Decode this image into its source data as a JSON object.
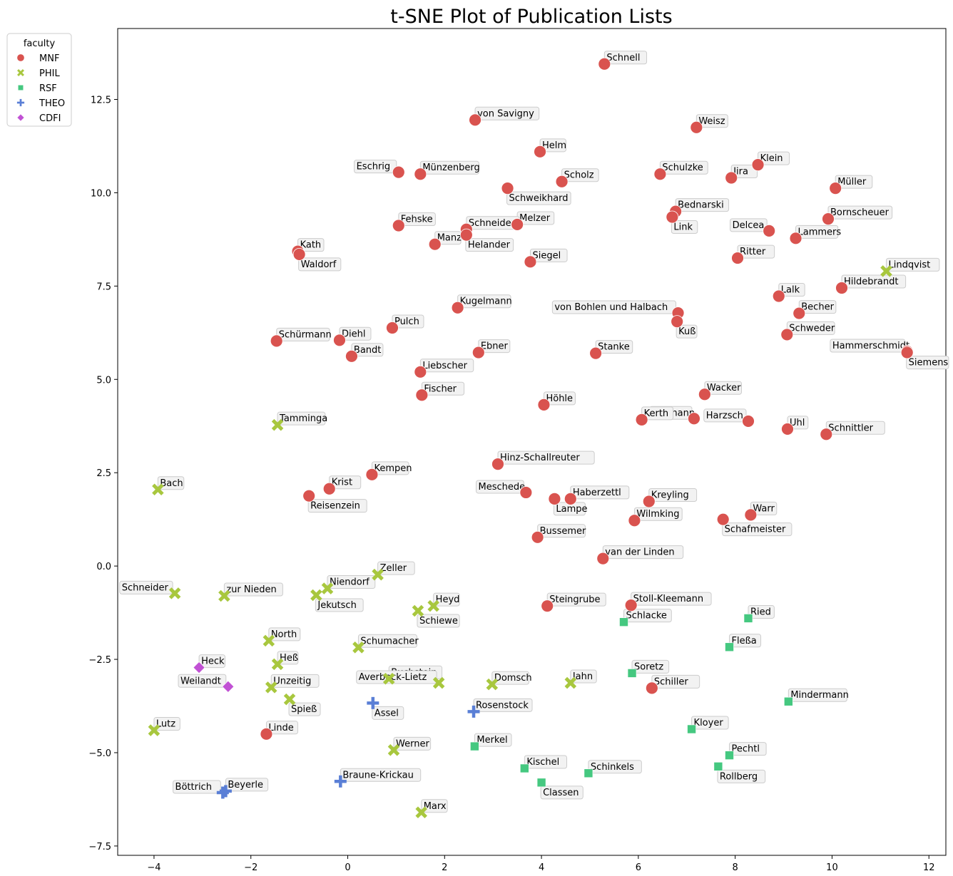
{
  "chart_data": {
    "type": "scatter",
    "title": "t-SNE Plot of Publication Lists",
    "xlabel": "",
    "ylabel": "",
    "xlim": [
      -4.75,
      12.35
    ],
    "ylim": [
      -7.75,
      14.4
    ],
    "x_ticks": [
      -4,
      -2,
      0,
      2,
      4,
      6,
      8,
      10,
      12
    ],
    "y_ticks": [
      -7.5,
      -5.0,
      -2.5,
      0.0,
      2.5,
      5.0,
      7.5,
      10.0,
      12.5
    ],
    "grid": false,
    "legend": {
      "title": "faculty",
      "placement": "outside-top-left",
      "entries": [
        {
          "name": "MNF",
          "color": "#d9534f",
          "marker": "circle"
        },
        {
          "name": "PHIL",
          "color": "#a8c73e",
          "marker": "x"
        },
        {
          "name": "RSF",
          "color": "#45c880",
          "marker": "square"
        },
        {
          "name": "THEO",
          "color": "#5a7fd6",
          "marker": "plus"
        },
        {
          "name": "CDFI",
          "color": "#c151d4",
          "marker": "diamond"
        }
      ]
    },
    "series": [
      {
        "name": "MNF",
        "points": [
          {
            "label": "Schnell",
            "x": 5.3,
            "y": 13.45
          },
          {
            "label": "von Savigny",
            "x": 2.63,
            "y": 11.95
          },
          {
            "label": "Weisz",
            "x": 7.2,
            "y": 11.75
          },
          {
            "label": "Helm",
            "x": 3.97,
            "y": 11.1
          },
          {
            "label": "Klein",
            "x": 8.47,
            "y": 10.75
          },
          {
            "label": "Eschrig",
            "x": 1.05,
            "y": 10.55
          },
          {
            "label": "Münzenberg",
            "x": 1.5,
            "y": 10.5
          },
          {
            "label": "Schulzke",
            "x": 6.45,
            "y": 10.5
          },
          {
            "label": "Jira",
            "x": 7.92,
            "y": 10.4
          },
          {
            "label": "Scholz",
            "x": 4.42,
            "y": 10.3
          },
          {
            "label": "Schweikhard",
            "x": 3.3,
            "y": 10.12
          },
          {
            "label": "Müller",
            "x": 10.07,
            "y": 10.12
          },
          {
            "label": "Bednarski",
            "x": 6.77,
            "y": 9.5
          },
          {
            "label": "Link",
            "x": 6.7,
            "y": 9.35
          },
          {
            "label": "Bornscheuer",
            "x": 9.92,
            "y": 9.3
          },
          {
            "label": "Fehske",
            "x": 1.05,
            "y": 9.12
          },
          {
            "label": "Melzer",
            "x": 3.5,
            "y": 9.15
          },
          {
            "label": "Schneider",
            "x": 2.45,
            "y": 9.02
          },
          {
            "label": "Helander",
            "x": 2.45,
            "y": 8.87
          },
          {
            "label": "Delcea",
            "x": 8.7,
            "y": 8.98
          },
          {
            "label": "Lammers",
            "x": 9.25,
            "y": 8.78
          },
          {
            "label": "Manz",
            "x": 1.8,
            "y": 8.62
          },
          {
            "label": "Kath",
            "x": -1.03,
            "y": 8.43
          },
          {
            "label": "Waldorf",
            "x": -1.0,
            "y": 8.35
          },
          {
            "label": "Ritter",
            "x": 8.05,
            "y": 8.25
          },
          {
            "label": "Siegel",
            "x": 3.77,
            "y": 8.15
          },
          {
            "label": "Hildebrandt",
            "x": 10.2,
            "y": 7.45
          },
          {
            "label": "Lalk",
            "x": 8.9,
            "y": 7.23
          },
          {
            "label": "Kugelmann",
            "x": 2.27,
            "y": 6.92
          },
          {
            "label": "von Bohlen und Halbach",
            "x": 6.82,
            "y": 6.78
          },
          {
            "label": "Becher",
            "x": 9.32,
            "y": 6.77
          },
          {
            "label": "Kuß",
            "x": 6.8,
            "y": 6.55
          },
          {
            "label": "Pulch",
            "x": 0.92,
            "y": 6.38
          },
          {
            "label": "Schweder",
            "x": 9.07,
            "y": 6.2
          },
          {
            "label": "Schürmann",
            "x": -1.47,
            "y": 6.03
          },
          {
            "label": "Diehl",
            "x": -0.17,
            "y": 6.05
          },
          {
            "label": "Hammerschmidt",
            "x": 11.55,
            "y": 5.75
          },
          {
            "label": "Siemens",
            "x": 11.55,
            "y": 5.72
          },
          {
            "label": "Ebner",
            "x": 2.7,
            "y": 5.72
          },
          {
            "label": "Stanke",
            "x": 5.12,
            "y": 5.7
          },
          {
            "label": "Bandt",
            "x": 0.08,
            "y": 5.62
          },
          {
            "label": "Liebscher",
            "x": 1.5,
            "y": 5.2
          },
          {
            "label": "Wacker",
            "x": 7.37,
            "y": 4.6
          },
          {
            "label": "Fischer",
            "x": 1.53,
            "y": 4.58
          },
          {
            "label": "Höhle",
            "x": 4.05,
            "y": 4.32
          },
          {
            "label": "Lehmann",
            "x": 7.15,
            "y": 3.95
          },
          {
            "label": "Kerth",
            "x": 6.07,
            "y": 3.92
          },
          {
            "label": "Harzsch",
            "x": 8.27,
            "y": 3.88
          },
          {
            "label": "Uhl",
            "x": 9.08,
            "y": 3.67
          },
          {
            "label": "Schnittler",
            "x": 9.88,
            "y": 3.53
          },
          {
            "label": "Hinz-Schallreuter",
            "x": 3.1,
            "y": 2.73
          },
          {
            "label": "Kempen",
            "x": 0.5,
            "y": 2.45
          },
          {
            "label": "Krist",
            "x": -0.38,
            "y": 2.07
          },
          {
            "label": "Meschede",
            "x": 3.68,
            "y": 1.97
          },
          {
            "label": "Reisenzein",
            "x": -0.8,
            "y": 1.88
          },
          {
            "label": "Lampe",
            "x": 4.27,
            "y": 1.8
          },
          {
            "label": "Haberzettl",
            "x": 4.6,
            "y": 1.8
          },
          {
            "label": "Kreyling",
            "x": 6.22,
            "y": 1.73
          },
          {
            "label": "Warr",
            "x": 8.32,
            "y": 1.37
          },
          {
            "label": "Wilmking",
            "x": 5.92,
            "y": 1.22
          },
          {
            "label": "Schafmeister",
            "x": 7.75,
            "y": 1.25
          },
          {
            "label": "Bussemer",
            "x": 3.92,
            "y": 0.77
          },
          {
            "label": "van der Linden",
            "x": 5.27,
            "y": 0.2
          },
          {
            "label": "Steingrube",
            "x": 4.12,
            "y": -1.07
          },
          {
            "label": "Stoll-Kleemann",
            "x": 5.85,
            "y": -1.05
          },
          {
            "label": "Schiller",
            "x": 6.28,
            "y": -3.27
          },
          {
            "label": "Linde",
            "x": -1.68,
            "y": -4.5
          }
        ]
      },
      {
        "name": "PHIL",
        "points": [
          {
            "label": "Lindqvist",
            "x": 11.12,
            "y": 7.9
          },
          {
            "label": "Tamminga",
            "x": -1.45,
            "y": 3.78
          },
          {
            "label": "Bach",
            "x": -3.92,
            "y": 2.05
          },
          {
            "label": "Zeller",
            "x": 0.62,
            "y": -0.23
          },
          {
            "label": "Niendorf",
            "x": -0.42,
            "y": -0.6
          },
          {
            "label": "Schneider",
            "x": -3.57,
            "y": -0.73
          },
          {
            "label": "zur Nieden",
            "x": -2.55,
            "y": -0.8
          },
          {
            "label": "Jekutsch",
            "x": -0.65,
            "y": -0.78
          },
          {
            "label": "Heyd",
            "x": 1.77,
            "y": -1.07
          },
          {
            "label": "Schiewe",
            "x": 1.45,
            "y": -1.2
          },
          {
            "label": "North",
            "x": -1.63,
            "y": -2.0
          },
          {
            "label": "Schumacher",
            "x": 0.22,
            "y": -2.18
          },
          {
            "label": "Heß",
            "x": -1.45,
            "y": -2.63
          },
          {
            "label": "Buchstein",
            "x": 0.85,
            "y": -3.02
          },
          {
            "label": "Unzeitig",
            "x": -1.58,
            "y": -3.25
          },
          {
            "label": "Averbeck-Lietz",
            "x": 1.88,
            "y": -3.13
          },
          {
            "label": "Domsch",
            "x": 2.98,
            "y": -3.17
          },
          {
            "label": "Jahn",
            "x": 4.6,
            "y": -3.13
          },
          {
            "label": "Spieß",
            "x": -1.2,
            "y": -3.57
          },
          {
            "label": "Lutz",
            "x": -4.0,
            "y": -4.4
          },
          {
            "label": "Werner",
            "x": 0.95,
            "y": -4.93
          },
          {
            "label": "Marx",
            "x": 1.52,
            "y": -6.6
          }
        ]
      },
      {
        "name": "RSF",
        "points": [
          {
            "label": "Schlacke",
            "x": 5.7,
            "y": -1.5
          },
          {
            "label": "Ried",
            "x": 8.27,
            "y": -1.4
          },
          {
            "label": "Fleßa",
            "x": 7.88,
            "y": -2.17
          },
          {
            "label": "Soretz",
            "x": 5.87,
            "y": -2.87
          },
          {
            "label": "Mindermann",
            "x": 9.1,
            "y": -3.63
          },
          {
            "label": "Kloyer",
            "x": 7.1,
            "y": -4.37
          },
          {
            "label": "Merkel",
            "x": 2.62,
            "y": -4.83
          },
          {
            "label": "Pechtl",
            "x": 7.88,
            "y": -5.07
          },
          {
            "label": "Kischel",
            "x": 3.65,
            "y": -5.42
          },
          {
            "label": "Rollberg",
            "x": 7.65,
            "y": -5.37
          },
          {
            "label": "Schinkels",
            "x": 4.97,
            "y": -5.55
          },
          {
            "label": "Classen",
            "x": 4.0,
            "y": -5.8
          }
        ]
      },
      {
        "name": "THEO",
        "points": [
          {
            "label": "Assel",
            "x": 0.52,
            "y": -3.67
          },
          {
            "label": "Rosenstock",
            "x": 2.6,
            "y": -3.9
          },
          {
            "label": "Braune-Krickau",
            "x": -0.15,
            "y": -5.77
          },
          {
            "label": "Beyerle",
            "x": -2.52,
            "y": -6.03
          },
          {
            "label": "Böttrich",
            "x": -2.58,
            "y": -6.07
          }
        ]
      },
      {
        "name": "CDFI",
        "points": [
          {
            "label": "Heck",
            "x": -3.07,
            "y": -2.72
          },
          {
            "label": "Weilandt",
            "x": -2.47,
            "y": -3.23
          }
        ]
      }
    ],
    "label_side": {
      "left": [
        "Eschrig",
        "Delcea",
        "von Bohlen und Halbach",
        "Hammerschmidt",
        "Lehmann",
        "Harzsch",
        "Meschede",
        "Schneider-PHIL",
        "Weilandt",
        "Averbeck-Lietz",
        "Böttrich"
      ],
      "below": [
        "Link",
        "Helander",
        "Waldorf",
        "Kuß",
        "Siemens",
        "Reisenzein",
        "Lampe",
        "Schafmeister",
        "Jekutsch",
        "Schiewe",
        "Spieß",
        "Assel",
        "Classen",
        "Rollberg",
        "Schweikhard"
      ]
    }
  }
}
